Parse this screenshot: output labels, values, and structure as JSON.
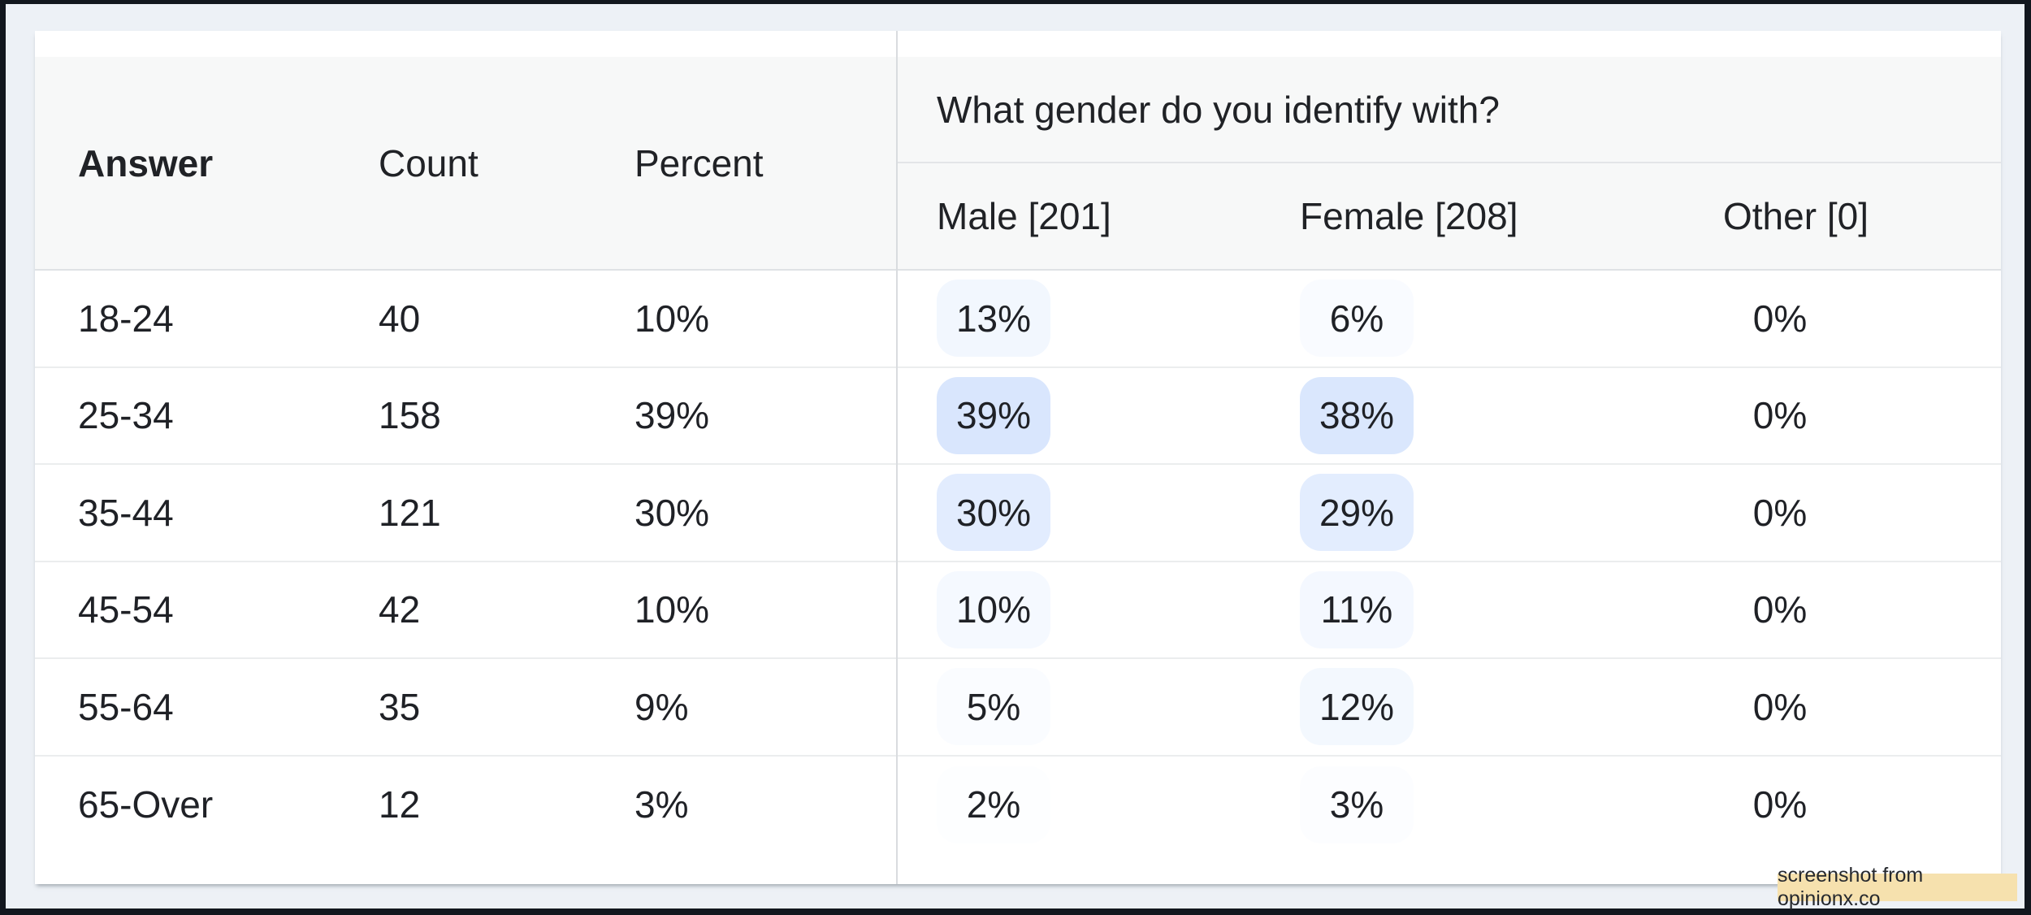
{
  "watermark": {
    "label": "screenshot from opinionx.co"
  },
  "colors": {
    "heat_base": "#3b82f6",
    "frame": "#12171e",
    "desktop_bg": "#edf1f6",
    "card_bg": "#ffffff",
    "header_bg": "#f7f8f8",
    "badge_bg": "#f6e1ae"
  },
  "table": {
    "question_title": "What gender do you identify with?",
    "left_headers": [
      "Answer",
      "Count",
      "Percent"
    ],
    "segment_headers": [
      "Male [201]",
      "Female [208]",
      "Other [0]"
    ],
    "rows": [
      {
        "answer": "18-24",
        "count": "40",
        "percent": "10%",
        "cells": [
          {
            "label": "13%",
            "value": 13
          },
          {
            "label": "6%",
            "value": 6
          },
          {
            "label": "0%",
            "value": 0
          }
        ]
      },
      {
        "answer": "25-34",
        "count": "158",
        "percent": "39%",
        "cells": [
          {
            "label": "39%",
            "value": 39
          },
          {
            "label": "38%",
            "value": 38
          },
          {
            "label": "0%",
            "value": 0
          }
        ]
      },
      {
        "answer": "35-44",
        "count": "121",
        "percent": "30%",
        "cells": [
          {
            "label": "30%",
            "value": 30
          },
          {
            "label": "29%",
            "value": 29
          },
          {
            "label": "0%",
            "value": 0
          }
        ]
      },
      {
        "answer": "45-54",
        "count": "42",
        "percent": "10%",
        "cells": [
          {
            "label": "10%",
            "value": 10
          },
          {
            "label": "11%",
            "value": 11
          },
          {
            "label": "0%",
            "value": 0
          }
        ]
      },
      {
        "answer": "55-64",
        "count": "35",
        "percent": "9%",
        "cells": [
          {
            "label": "5%",
            "value": 5
          },
          {
            "label": "12%",
            "value": 12
          },
          {
            "label": "0%",
            "value": 0
          }
        ]
      },
      {
        "answer": "65-Over",
        "count": "12",
        "percent": "3%",
        "cells": [
          {
            "label": "2%",
            "value": 2
          },
          {
            "label": "3%",
            "value": 3
          },
          {
            "label": "0%",
            "value": 0
          }
        ]
      }
    ]
  },
  "chart_data": {
    "type": "table",
    "title": "What gender do you identify with?",
    "columns": [
      "Answer",
      "Count",
      "Percent",
      "Male [201]",
      "Female [208]",
      "Other [0]"
    ],
    "rows": [
      [
        "18-24",
        "40",
        "10%",
        "13%",
        "6%",
        "0%"
      ],
      [
        "25-34",
        "158",
        "39%",
        "39%",
        "38%",
        "0%"
      ],
      [
        "35-44",
        "121",
        "30%",
        "30%",
        "29%",
        "0%"
      ],
      [
        "45-54",
        "42",
        "10%",
        "10%",
        "11%",
        "0%"
      ],
      [
        "55-64",
        "35",
        "9%",
        "5%",
        "12%",
        "0%"
      ],
      [
        "65-Over",
        "12",
        "3%",
        "2%",
        "3%",
        "0%"
      ]
    ]
  }
}
